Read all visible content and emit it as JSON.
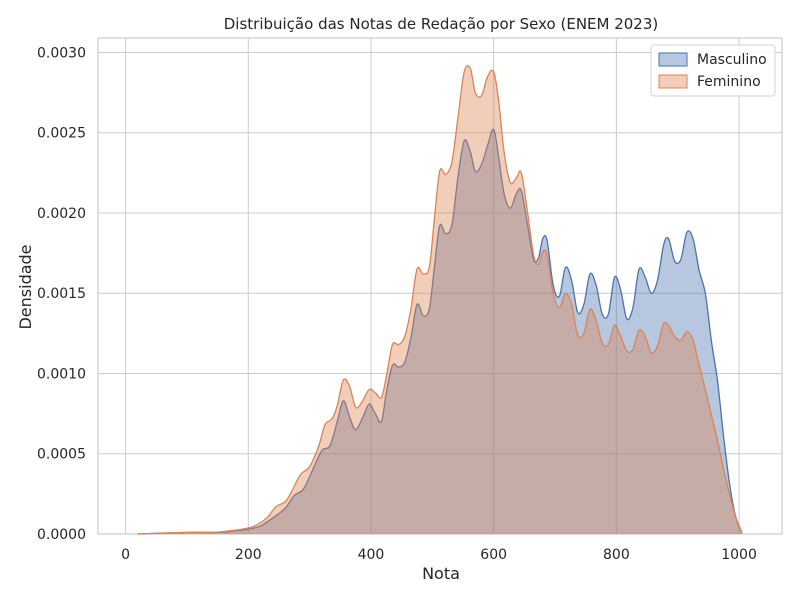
{
  "chart_data": {
    "type": "area",
    "title": "Distribuição das Notas de Redação por Sexo (ENEM 2023)",
    "xlabel": "Nota",
    "ylabel": "Densidade",
    "xlim": [
      -45,
      1070
    ],
    "ylim": [
      0,
      0.00309
    ],
    "xticks": [
      0,
      200,
      400,
      600,
      800,
      1000
    ],
    "xtick_labels": [
      "0",
      "200",
      "400",
      "600",
      "800",
      "1000"
    ],
    "yticks": [
      0,
      0.0005,
      0.001,
      0.0015,
      0.002,
      0.0025,
      0.003
    ],
    "ytick_labels": [
      "0.0000",
      "0.0005",
      "0.0010",
      "0.0015",
      "0.0020",
      "0.0025",
      "0.0030"
    ],
    "grid": true,
    "legend": "top-right",
    "series": [
      {
        "name": "Masculino",
        "color": "#4c72b0",
        "fill": "#4c72b0",
        "points": [
          [
            20,
            0
          ],
          [
            100,
            1e-05
          ],
          [
            150,
            1e-05
          ],
          [
            180,
            2e-05
          ],
          [
            200,
            3e-05
          ],
          [
            220,
            5e-05
          ],
          [
            240,
            0.0001
          ],
          [
            260,
            0.00016
          ],
          [
            275,
            0.00024
          ],
          [
            290,
            0.00028
          ],
          [
            305,
            0.0004
          ],
          [
            320,
            0.00052
          ],
          [
            333,
            0.00055
          ],
          [
            345,
            0.0007
          ],
          [
            355,
            0.00083
          ],
          [
            365,
            0.00073
          ],
          [
            375,
            0.00065
          ],
          [
            387,
            0.00073
          ],
          [
            397,
            0.00081
          ],
          [
            407,
            0.00075
          ],
          [
            417,
            0.0007
          ],
          [
            425,
            0.00088
          ],
          [
            435,
            0.00105
          ],
          [
            445,
            0.00104
          ],
          [
            455,
            0.00107
          ],
          [
            465,
            0.00122
          ],
          [
            475,
            0.00143
          ],
          [
            485,
            0.00136
          ],
          [
            495,
            0.0014
          ],
          [
            503,
            0.00165
          ],
          [
            512,
            0.00192
          ],
          [
            522,
            0.00187
          ],
          [
            532,
            0.00193
          ],
          [
            542,
            0.00223
          ],
          [
            552,
            0.00245
          ],
          [
            562,
            0.00238
          ],
          [
            570,
            0.00226
          ],
          [
            580,
            0.0023
          ],
          [
            590,
            0.00242
          ],
          [
            600,
            0.00252
          ],
          [
            608,
            0.00235
          ],
          [
            617,
            0.00212
          ],
          [
            627,
            0.00203
          ],
          [
            637,
            0.00212
          ],
          [
            645,
            0.00214
          ],
          [
            655,
            0.00193
          ],
          [
            665,
            0.00171
          ],
          [
            673,
            0.00172
          ],
          [
            680,
            0.00184
          ],
          [
            687,
            0.00183
          ],
          [
            697,
            0.00155
          ],
          [
            707,
            0.00148
          ],
          [
            717,
            0.00166
          ],
          [
            727,
            0.00158
          ],
          [
            737,
            0.00138
          ],
          [
            747,
            0.00143
          ],
          [
            757,
            0.00162
          ],
          [
            767,
            0.00155
          ],
          [
            777,
            0.00137
          ],
          [
            787,
            0.00137
          ],
          [
            797,
            0.0016
          ],
          [
            807,
            0.00152
          ],
          [
            817,
            0.00134
          ],
          [
            827,
            0.00141
          ],
          [
            837,
            0.00165
          ],
          [
            847,
            0.0016
          ],
          [
            857,
            0.0015
          ],
          [
            867,
            0.00158
          ],
          [
            877,
            0.0018
          ],
          [
            885,
            0.00184
          ],
          [
            895,
            0.0017
          ],
          [
            905,
            0.00171
          ],
          [
            915,
            0.00188
          ],
          [
            925,
            0.00184
          ],
          [
            935,
            0.00164
          ],
          [
            945,
            0.0015
          ],
          [
            955,
            0.0012
          ],
          [
            965,
            0.00095
          ],
          [
            975,
            0.0006
          ],
          [
            985,
            0.0003
          ],
          [
            995,
            0.0001
          ],
          [
            1005,
            1e-05
          ]
        ]
      },
      {
        "name": "Feminino",
        "color": "#dd8452",
        "fill": "#dd8452",
        "points": [
          [
            20,
            0
          ],
          [
            100,
            1e-05
          ],
          [
            140,
            1e-05
          ],
          [
            170,
            2e-05
          ],
          [
            190,
            3e-05
          ],
          [
            210,
            5e-05
          ],
          [
            230,
            0.0001
          ],
          [
            245,
            0.00017
          ],
          [
            260,
            0.0002
          ],
          [
            270,
            0.00026
          ],
          [
            285,
            0.00037
          ],
          [
            300,
            0.00042
          ],
          [
            315,
            0.00055
          ],
          [
            325,
            0.00068
          ],
          [
            337,
            0.00072
          ],
          [
            345,
            0.0008
          ],
          [
            355,
            0.00096
          ],
          [
            365,
            0.00092
          ],
          [
            375,
            0.00079
          ],
          [
            385,
            0.00082
          ],
          [
            397,
            0.0009
          ],
          [
            407,
            0.00088
          ],
          [
            417,
            0.00085
          ],
          [
            425,
            0.00098
          ],
          [
            435,
            0.00118
          ],
          [
            445,
            0.00118
          ],
          [
            455,
            0.00123
          ],
          [
            465,
            0.0014
          ],
          [
            475,
            0.00165
          ],
          [
            485,
            0.00162
          ],
          [
            495,
            0.00166
          ],
          [
            503,
            0.00195
          ],
          [
            512,
            0.00226
          ],
          [
            522,
            0.00224
          ],
          [
            532,
            0.00232
          ],
          [
            542,
            0.0026
          ],
          [
            552,
            0.00288
          ],
          [
            562,
            0.0029
          ],
          [
            570,
            0.00275
          ],
          [
            580,
            0.00273
          ],
          [
            590,
            0.00285
          ],
          [
            600,
            0.00288
          ],
          [
            608,
            0.0027
          ],
          [
            617,
            0.00238
          ],
          [
            627,
            0.00219
          ],
          [
            637,
            0.00222
          ],
          [
            645,
            0.00225
          ],
          [
            655,
            0.00201
          ],
          [
            665,
            0.00174
          ],
          [
            673,
            0.00168
          ],
          [
            680,
            0.00176
          ],
          [
            687,
            0.00174
          ],
          [
            697,
            0.0015
          ],
          [
            707,
            0.00141
          ],
          [
            717,
            0.0015
          ],
          [
            727,
            0.00143
          ],
          [
            737,
            0.00124
          ],
          [
            747,
            0.00125
          ],
          [
            757,
            0.0014
          ],
          [
            767,
            0.00133
          ],
          [
            777,
            0.00119
          ],
          [
            787,
            0.00118
          ],
          [
            797,
            0.0013
          ],
          [
            807,
            0.00123
          ],
          [
            817,
            0.00114
          ],
          [
            827,
            0.00115
          ],
          [
            837,
            0.00127
          ],
          [
            847,
            0.00123
          ],
          [
            857,
            0.00113
          ],
          [
            867,
            0.00117
          ],
          [
            877,
            0.00131
          ],
          [
            885,
            0.0013
          ],
          [
            895,
            0.00123
          ],
          [
            905,
            0.00121
          ],
          [
            915,
            0.00126
          ],
          [
            925,
            0.00121
          ],
          [
            935,
            0.00105
          ],
          [
            945,
            0.0009
          ],
          [
            955,
            0.00074
          ],
          [
            965,
            0.00058
          ],
          [
            975,
            0.0004
          ],
          [
            985,
            0.00024
          ],
          [
            995,
            0.0001
          ],
          [
            1005,
            1e-05
          ]
        ]
      }
    ]
  }
}
